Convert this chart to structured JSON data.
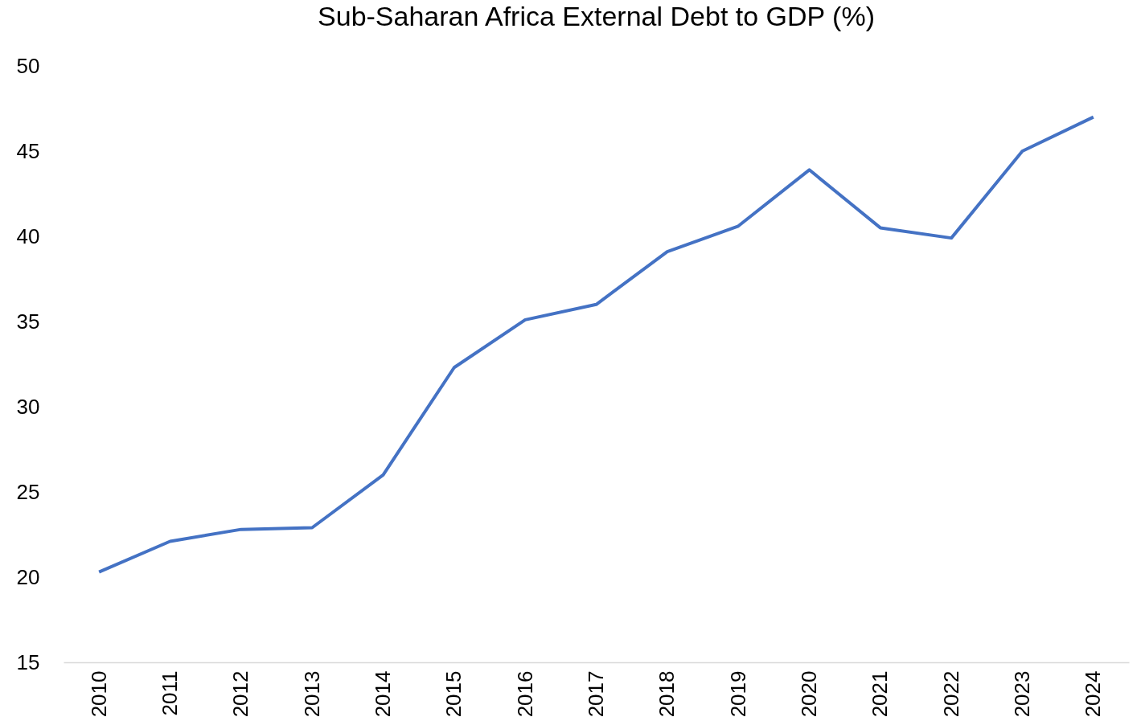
{
  "chart_data": {
    "type": "line",
    "title": "Sub-Saharan Africa External Debt to GDP (%)",
    "categories": [
      "2010",
      "2011",
      "2012",
      "2013",
      "2014",
      "2015",
      "2016",
      "2017",
      "2018",
      "2019",
      "2020",
      "2021",
      "2022",
      "2023",
      "2024"
    ],
    "series": [
      {
        "color": "#4472c4",
        "values": [
          20.3,
          22.1,
          22.8,
          22.9,
          26.0,
          32.3,
          35.1,
          36.0,
          39.1,
          40.6,
          43.9,
          40.5,
          39.9,
          45.0,
          47.0
        ]
      }
    ],
    "ylim": [
      15,
      50
    ],
    "yticks": [
      15,
      20,
      25,
      30,
      35,
      40,
      45,
      50
    ],
    "grid": false,
    "marker": "none",
    "line_style": "solid"
  }
}
